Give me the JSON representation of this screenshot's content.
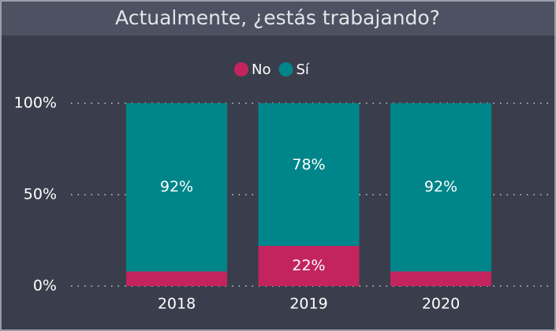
{
  "chart_data": {
    "type": "stacked_bar",
    "title": "Actualmente, ¿estás trabajando?",
    "categories": [
      "2018",
      "2019",
      "2020"
    ],
    "series": [
      {
        "name": "No",
        "color": "#c4245d",
        "values": [
          8,
          22,
          8
        ],
        "value_labels": [
          null,
          "22%",
          null
        ]
      },
      {
        "name": "Sí",
        "color": "#00868a",
        "values": [
          92,
          78,
          92
        ],
        "value_labels": [
          "92%",
          "78%",
          "92%"
        ]
      }
    ],
    "ylim": [
      0,
      100
    ],
    "yticks": [
      {
        "value": 0,
        "label": "0%"
      },
      {
        "value": 50,
        "label": "50%"
      },
      {
        "value": 100,
        "label": "100%"
      }
    ],
    "grid": true,
    "legend": "top"
  }
}
